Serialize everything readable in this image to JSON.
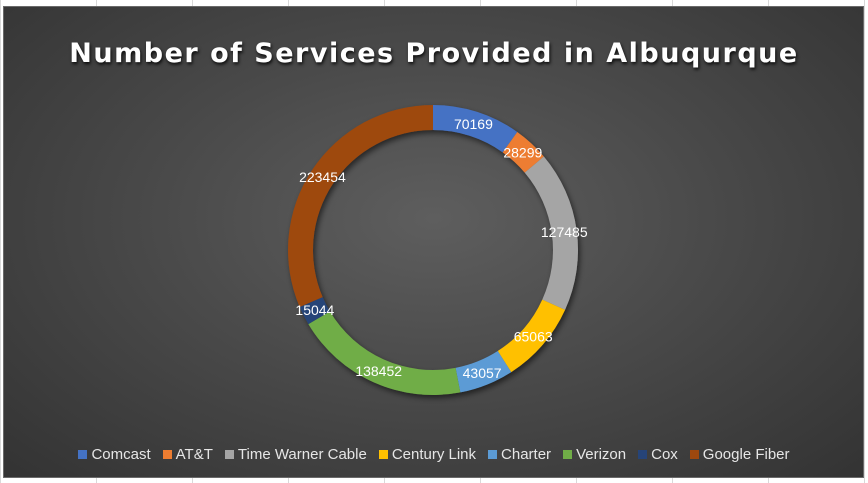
{
  "chart_data": {
    "type": "pie",
    "title": "Number of Services Provided in Albuqurque",
    "categories": [
      "Comcast",
      "AT&T",
      "Time Warner Cable",
      "Century Link",
      "Charter",
      "Verizon",
      "Cox",
      "Google Fiber"
    ],
    "values": [
      70169,
      28299,
      127485,
      65063,
      43057,
      138452,
      15044,
      223454
    ],
    "colors": [
      "#4472C4",
      "#ED7D31",
      "#A5A5A5",
      "#FFC000",
      "#5B9BD5",
      "#70AD47",
      "#264478",
      "#9E480E"
    ],
    "donut": true,
    "legend_position": "bottom",
    "data_labels": true
  }
}
